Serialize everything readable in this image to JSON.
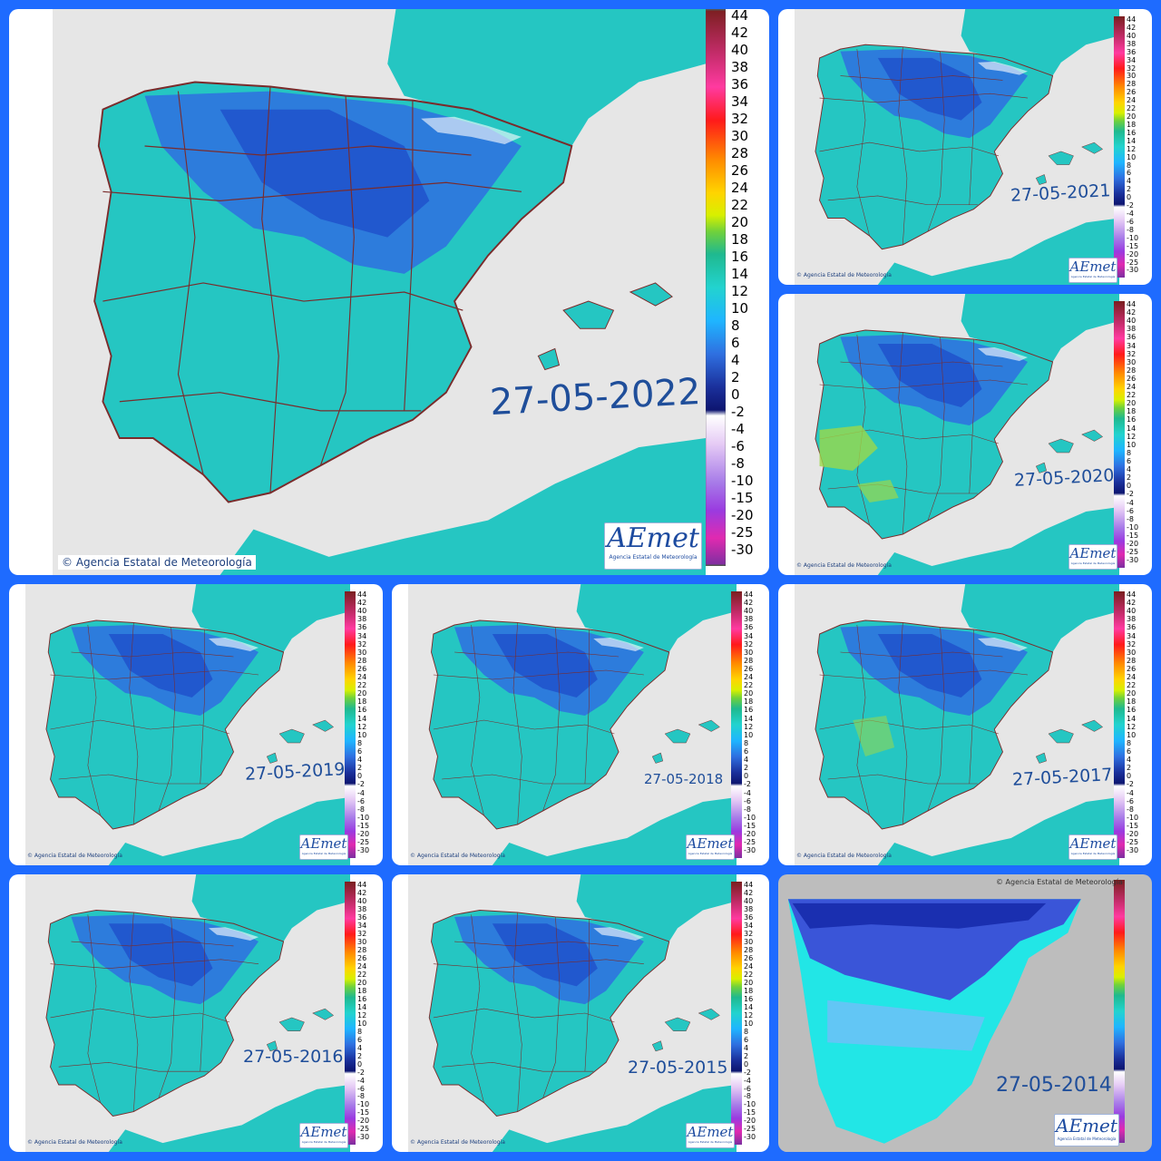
{
  "copyright": "© Agencia Estatal de Meteorología",
  "logo_text": "AEmet",
  "logo_sub": "Agencia Estatal de Meteorología",
  "scale_labels": [
    "44",
    "42",
    "40",
    "38",
    "36",
    "34",
    "32",
    "30",
    "28",
    "26",
    "24",
    "22",
    "20",
    "18",
    "16",
    "14",
    "12",
    "10",
    "8",
    "6",
    "4",
    "2",
    "0",
    "-2",
    "-4",
    "-6",
    "-8",
    "-10",
    "-15",
    "-20",
    "-25",
    "-30"
  ],
  "big_scale_labels": [
    "44",
    "42",
    "40",
    "38",
    "36",
    "34",
    "32",
    "30",
    "28",
    "26",
    "24",
    "22",
    "20",
    "18",
    "16",
    "14",
    "12",
    "10",
    "8",
    "6",
    "4",
    "2",
    "0",
    "-2",
    "-4",
    "-6",
    "-8",
    "-10",
    "-15",
    "-20",
    "-25",
    "-30"
  ],
  "colors": {
    "land": "#25c6c2",
    "cold": "#2f6fe0",
    "very_cold": "#1d48c8",
    "sea": "#e6e6e6",
    "border": "#7a2b2b",
    "frame": "#1e6bff",
    "warm": "#9bd84a"
  },
  "maps": [
    {
      "date": "27-05-2022"
    },
    {
      "date": "27-05-2021"
    },
    {
      "date": "27-05-2020"
    },
    {
      "date": "27-05-2019"
    },
    {
      "date": "27-05-2018"
    },
    {
      "date": "27-05-2017"
    },
    {
      "date": "27-05-2016"
    },
    {
      "date": "27-05-2015"
    },
    {
      "date": "27-05-2014"
    }
  ]
}
